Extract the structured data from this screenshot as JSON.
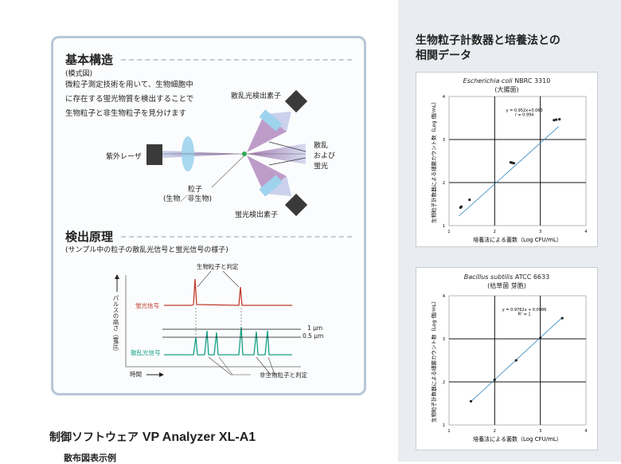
{
  "left": {
    "section1": {
      "title": "基本構造",
      "subtitle": "(模式図)",
      "body": [
        "微粒子測定技術を用いて、生物細胞中",
        "に存在する蛍光物質を検出することで",
        "生物粒子と非生物粒子を見分けます"
      ],
      "labels": {
        "laser": "紫外レーザ",
        "scatter_detector": "散乱光検出素子",
        "fluor_detector": "蛍光検出素子",
        "scatter_fluor": [
          "散乱",
          "および",
          "蛍光"
        ],
        "particle": "粒子",
        "particle_sub": "(生物／非生物)"
      }
    },
    "section2": {
      "title": "検出原理",
      "subtitle": "(サンプル中の粒子の散乱光信号と蛍光信号の様子)",
      "labels": {
        "bio": "生物粒子と判定",
        "nonbio": "非生物粒子と判定",
        "fluor_signal": "蛍光信号",
        "scatter_signal": "散乱光信号",
        "y_axis": "パルスの高さ（電圧）",
        "x_axis": "時間",
        "th1": "1 μm",
        "th05": "0.5 μm"
      },
      "colors": {
        "fluor": "#c0392b",
        "scatter": "#16a085"
      }
    }
  },
  "right": {
    "title_line1": "生物粒子計数器と培養法との",
    "title_line2": "相関データ"
  },
  "chart_data": [
    {
      "type": "scatter",
      "title_italic": "Escherichia coli",
      "title_rest": " NBRC 3310",
      "subtitle": "(大腸菌)",
      "equation": "y = 0.952x+0.063",
      "stat": "r = 0.994",
      "xlabel": "培養法による菌数（Log CFU/mL）",
      "ylabel": "生物粒子計数器による細菌カウント数（Log 個/mL）",
      "xlim": [
        1,
        4
      ],
      "ylim": [
        1,
        4
      ],
      "xticks": [
        "1",
        "2",
        "3",
        "4"
      ],
      "yticks": [
        "1",
        "2",
        "3",
        "4"
      ],
      "grid": true,
      "line_color": "#2e86c1",
      "points": [
        [
          1.25,
          1.42
        ],
        [
          1.27,
          1.44
        ],
        [
          1.45,
          1.6
        ],
        [
          2.35,
          2.47
        ],
        [
          2.38,
          2.46
        ],
        [
          2.42,
          2.45
        ],
        [
          3.3,
          3.45
        ],
        [
          3.35,
          3.46
        ],
        [
          3.42,
          3.47
        ]
      ],
      "fit": {
        "slope": 0.952,
        "intercept": 0.063,
        "x": [
          1.22,
          3.4
        ]
      }
    },
    {
      "type": "scatter",
      "title_italic": "Bacillus subtilis",
      "title_rest": " ATCC 6633",
      "subtitle": "(枯草菌 芽胞)",
      "equation": "y = 0.9762x + 0.0986",
      "stat": "R² = 1",
      "xlabel": "培養法による菌数（Log CFU/mL）",
      "ylabel": "生物粒子計数器による細菌カウント数（Log 個/mL）",
      "xlim": [
        1,
        4
      ],
      "ylim": [
        1,
        4
      ],
      "xticks": [
        "1",
        "2",
        "3",
        "4"
      ],
      "yticks": [
        "1",
        "2",
        "3",
        "4"
      ],
      "grid": true,
      "line_color": "#2e86c1",
      "points": [
        [
          1.48,
          1.55
        ],
        [
          2.0,
          2.05
        ],
        [
          2.47,
          2.5
        ],
        [
          3.0,
          3.02
        ],
        [
          3.48,
          3.48
        ]
      ],
      "fit": {
        "slope": 0.9762,
        "intercept": 0.0986,
        "x": [
          1.48,
          3.48
        ]
      }
    }
  ],
  "bottom": {
    "title_jp": "制御ソフトウェア ",
    "title_en": "VP Analyzer XL-A1",
    "subtitle": "散布図表示例"
  }
}
